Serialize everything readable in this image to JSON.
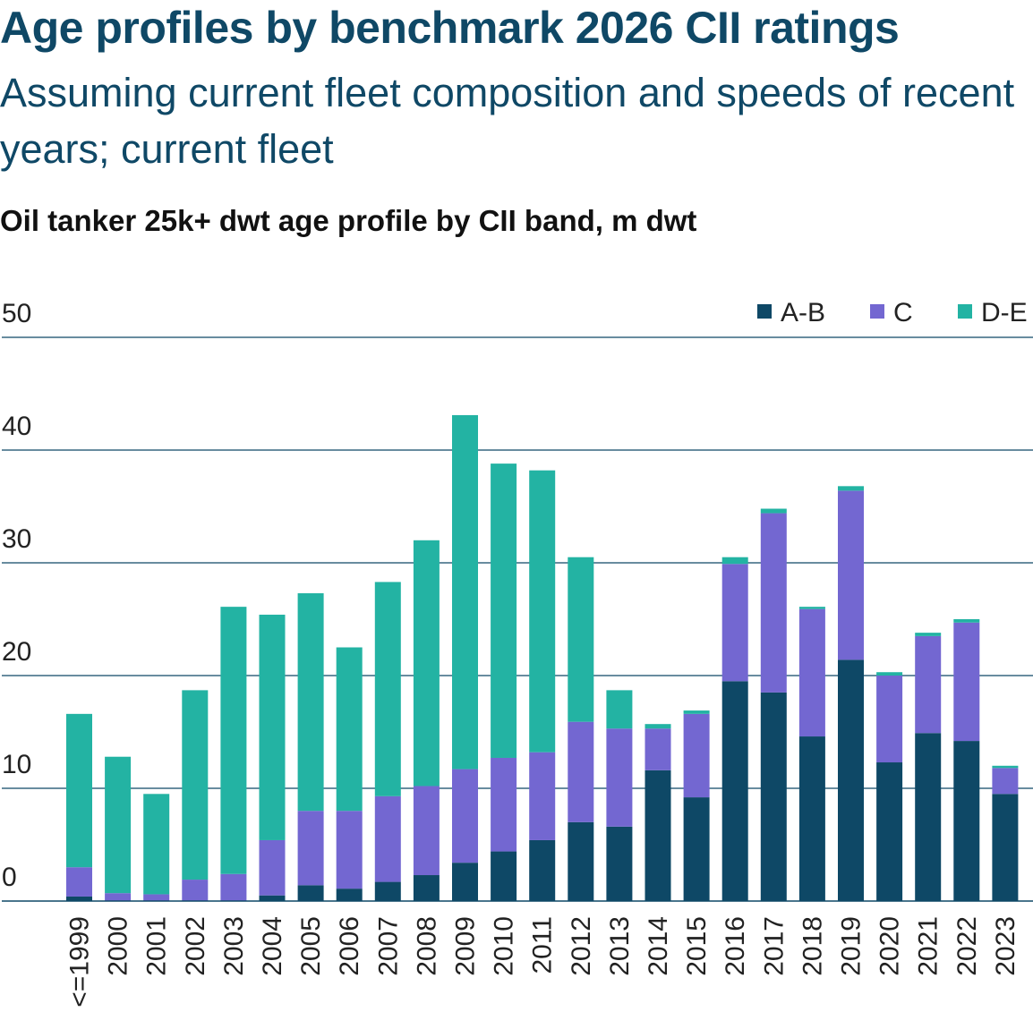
{
  "header": {
    "title": "Age profiles by benchmark 2026 CII ratings",
    "subtitle": "Assuming current fleet composition and speeds of recent years; current fleet"
  },
  "colors": {
    "A-B": "#0e4866",
    "C": "#7367d1",
    "D-E": "#23b3a3",
    "axis": "#0f4866",
    "grid": "#0f4866"
  },
  "chart_data": {
    "type": "bar",
    "stacked": true,
    "title": "Oil tanker 25k+ dwt age profile by CII band, m dwt",
    "categories": [
      "<=1999",
      "2000",
      "2001",
      "2002",
      "2003",
      "2004",
      "2005",
      "2006",
      "2007",
      "2008",
      "2009",
      "2010",
      "2011",
      "2012",
      "2013",
      "2014",
      "2015",
      "2016",
      "2017",
      "2018",
      "2019",
      "2020",
      "2021",
      "2022",
      "2023"
    ],
    "series": [
      {
        "name": "A-B",
        "values": [
          0.4,
          0,
          0,
          0,
          0,
          0.5,
          1.4,
          1.1,
          1.7,
          2.3,
          3.4,
          4.4,
          5.4,
          7.0,
          6.6,
          11.6,
          9.2,
          19.5,
          18.5,
          14.6,
          21.4,
          12.3,
          14.9,
          14.2,
          9.5
        ]
      },
      {
        "name": "C",
        "values": [
          2.6,
          0.7,
          0.6,
          1.9,
          2.4,
          4.9,
          6.6,
          6.9,
          7.6,
          7.9,
          8.3,
          8.3,
          7.8,
          8.9,
          8.7,
          3.7,
          7.4,
          10.4,
          15.9,
          11.3,
          15.0,
          7.7,
          8.6,
          10.5,
          2.3
        ]
      },
      {
        "name": "D-E",
        "values": [
          13.6,
          12.1,
          8.9,
          16.8,
          23.7,
          20.0,
          19.3,
          14.5,
          19.0,
          21.8,
          31.4,
          26.1,
          25.0,
          14.6,
          3.4,
          0.4,
          0.3,
          0.6,
          0.4,
          0.2,
          0.4,
          0.3,
          0.3,
          0.3,
          0.2
        ]
      }
    ],
    "y_ticks": [
      "0",
      "10",
      "20",
      "30",
      "40",
      "50"
    ],
    "ylim": [
      0,
      50
    ],
    "grid": true,
    "legend": "top-right"
  }
}
